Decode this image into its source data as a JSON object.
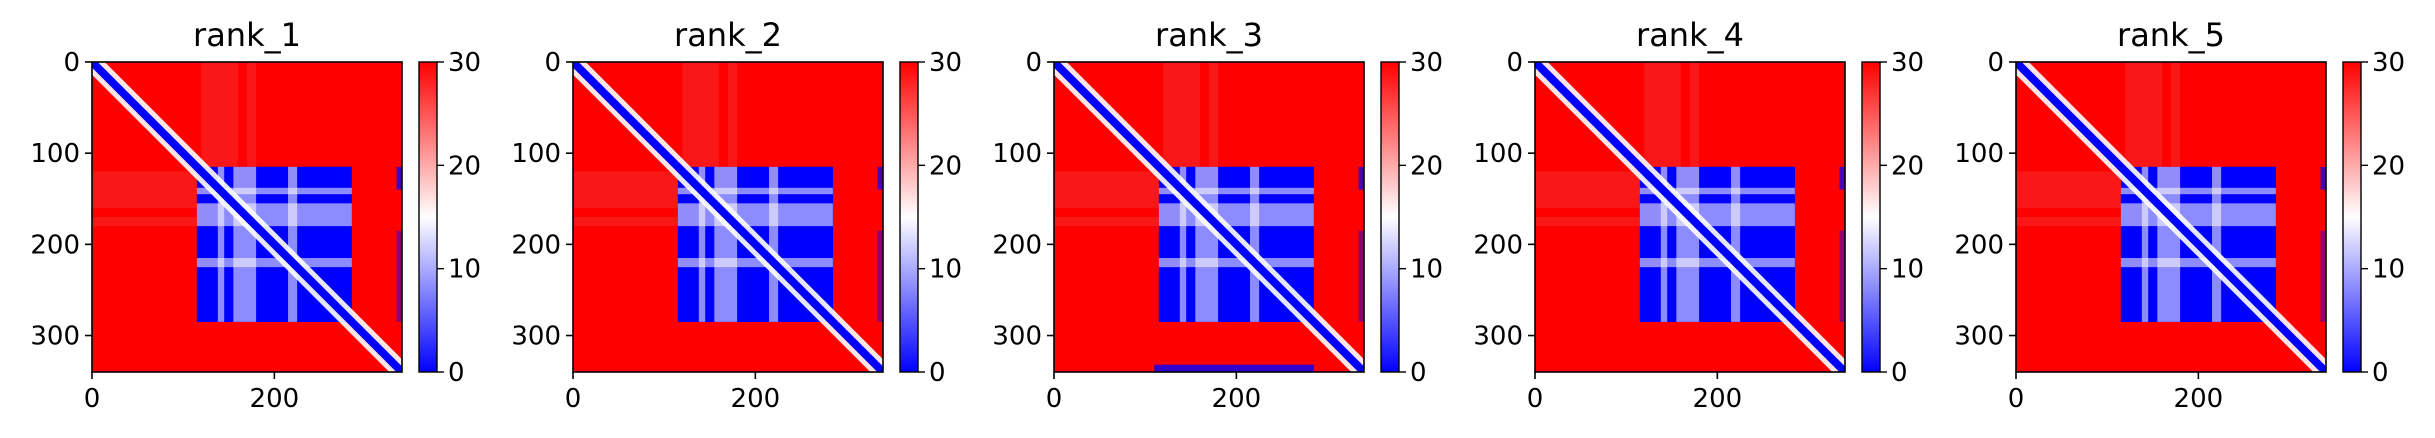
{
  "chart_data": [
    {
      "type": "heatmap",
      "title": "rank_1",
      "xlim": [
        0,
        340
      ],
      "ylim": [
        340,
        0
      ],
      "x_ticks": [
        "0",
        "200"
      ],
      "y_ticks": [
        "0",
        "100",
        "200",
        "300"
      ],
      "colorbar": {
        "range": [
          0,
          30
        ],
        "ticks": [
          "0",
          "10",
          "20",
          "30"
        ],
        "colormap": "bwr",
        "colors": [
          "#0000ff",
          "#ffffff",
          "#ff0000"
        ]
      },
      "blocks": [
        [
          115,
          285
        ],
        [
          145,
          155
        ],
        [
          180,
          215
        ],
        [
          225,
          285
        ]
      ],
      "bottom_band": false
    },
    {
      "type": "heatmap",
      "title": "rank_2",
      "xlim": [
        0,
        340
      ],
      "ylim": [
        340,
        0
      ],
      "x_ticks": [
        "0",
        "200"
      ],
      "y_ticks": [
        "0",
        "100",
        "200",
        "300"
      ],
      "colorbar": {
        "range": [
          0,
          30
        ],
        "ticks": [
          "0",
          "10",
          "20",
          "30"
        ],
        "colormap": "bwr",
        "colors": [
          "#0000ff",
          "#ffffff",
          "#ff0000"
        ]
      },
      "blocks": [
        [
          115,
          285
        ],
        [
          145,
          155
        ],
        [
          180,
          215
        ],
        [
          225,
          285
        ]
      ],
      "bottom_band": false
    },
    {
      "type": "heatmap",
      "title": "rank_3",
      "xlim": [
        0,
        340
      ],
      "ylim": [
        340,
        0
      ],
      "x_ticks": [
        "0",
        "200"
      ],
      "y_ticks": [
        "0",
        "100",
        "200",
        "300"
      ],
      "colorbar": {
        "range": [
          0,
          30
        ],
        "ticks": [
          "0",
          "10",
          "20",
          "30"
        ],
        "colormap": "bwr",
        "colors": [
          "#0000ff",
          "#ffffff",
          "#ff0000"
        ]
      },
      "blocks": [
        [
          115,
          285
        ],
        [
          145,
          155
        ],
        [
          180,
          215
        ],
        [
          225,
          285
        ]
      ],
      "bottom_band": true
    },
    {
      "type": "heatmap",
      "title": "rank_4",
      "xlim": [
        0,
        340
      ],
      "ylim": [
        340,
        0
      ],
      "x_ticks": [
        "0",
        "200"
      ],
      "y_ticks": [
        "0",
        "100",
        "200",
        "300"
      ],
      "colorbar": {
        "range": [
          0,
          30
        ],
        "ticks": [
          "0",
          "10",
          "20",
          "30"
        ],
        "colormap": "bwr",
        "colors": [
          "#0000ff",
          "#ffffff",
          "#ff0000"
        ]
      },
      "blocks": [
        [
          115,
          285
        ],
        [
          145,
          155
        ],
        [
          180,
          215
        ],
        [
          225,
          285
        ]
      ],
      "bottom_band": false
    },
    {
      "type": "heatmap",
      "title": "rank_5",
      "xlim": [
        0,
        340
      ],
      "ylim": [
        340,
        0
      ],
      "x_ticks": [
        "0",
        "200"
      ],
      "y_ticks": [
        "0",
        "100",
        "200",
        "300"
      ],
      "colorbar": {
        "range": [
          0,
          30
        ],
        "ticks": [
          "0",
          "10",
          "20",
          "30"
        ],
        "colormap": "bwr",
        "colors": [
          "#0000ff",
          "#ffffff",
          "#ff0000"
        ]
      },
      "blocks": [
        [
          115,
          285
        ],
        [
          145,
          155
        ],
        [
          180,
          215
        ],
        [
          225,
          285
        ]
      ],
      "bottom_band": false
    }
  ]
}
